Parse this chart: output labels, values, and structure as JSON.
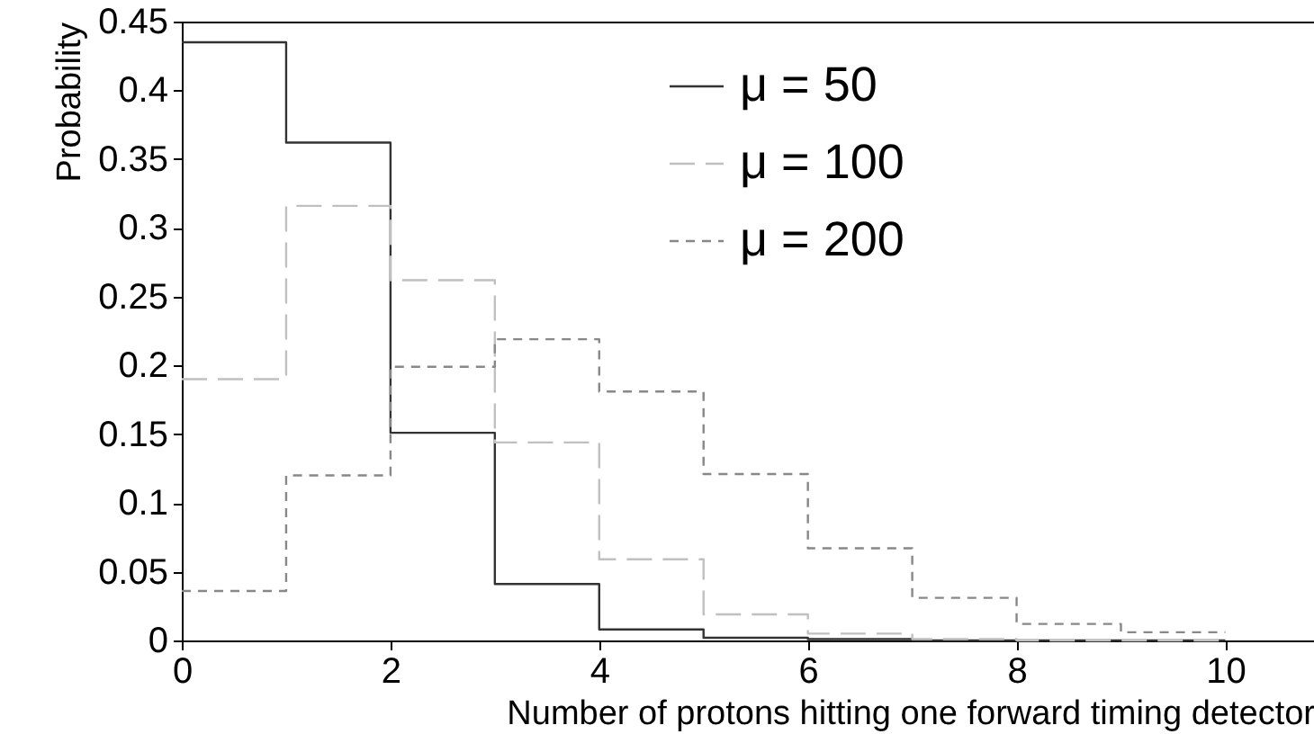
{
  "chart_data": {
    "type": "histogram",
    "xlabel": "Number of protons hitting one forward timing detector",
    "ylabel": "Probability",
    "bins": [
      0,
      1,
      2,
      3,
      4,
      5,
      6,
      7,
      8,
      9,
      10
    ],
    "series": [
      {
        "name": "μ = 50",
        "color": "#333333",
        "line_style": "solid",
        "values": [
          0.435,
          0.362,
          0.151,
          0.041,
          0.008,
          0.002,
          0.001,
          0,
          0,
          0
        ]
      },
      {
        "name": "μ = 100",
        "color": "#c0c0c0",
        "line_style": "dashed",
        "values": [
          0.19,
          0.316,
          0.262,
          0.144,
          0.059,
          0.019,
          0.005,
          0.001,
          0,
          0
        ]
      },
      {
        "name": "μ = 200",
        "color": "#888888",
        "line_style": "dotted",
        "values": [
          0.036,
          0.12,
          0.199,
          0.219,
          0.181,
          0.121,
          0.067,
          0.031,
          0.012,
          0.006
        ]
      }
    ],
    "xlim": [
      0,
      10.85
    ],
    "ylim": [
      0,
      0.45
    ],
    "xticks": [
      0,
      2,
      4,
      6,
      8,
      10
    ],
    "yticks": [
      0,
      0.05,
      0.1,
      0.15,
      0.2,
      0.25,
      0.3,
      0.35,
      0.4,
      0.45
    ],
    "legend": "top",
    "grid": false
  }
}
